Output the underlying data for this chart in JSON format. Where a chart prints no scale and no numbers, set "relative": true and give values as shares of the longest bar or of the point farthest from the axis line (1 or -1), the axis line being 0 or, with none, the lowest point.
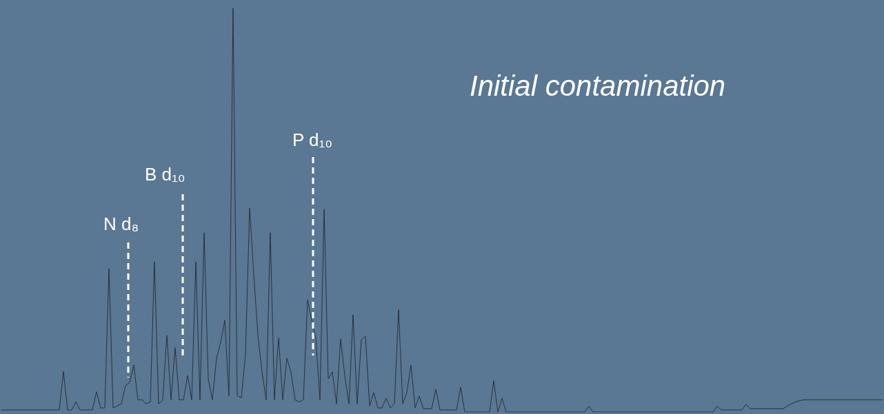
{
  "chart_data": {
    "type": "line",
    "title": "Initial contamination",
    "relative": true,
    "color": "#252a33",
    "line_style": "solid",
    "marker": "none",
    "categories": [
      null,
      null,
      null,
      null,
      null,
      null,
      null,
      null,
      null,
      null,
      null,
      null,
      null,
      null,
      null,
      null,
      null,
      null,
      null,
      null,
      null,
      null,
      null,
      null,
      null,
      null,
      null,
      null,
      null,
      null,
      null,
      null,
      null,
      null,
      null,
      null,
      null,
      null,
      null,
      null,
      null,
      null,
      null,
      null,
      null,
      null,
      null,
      null,
      null,
      null,
      null,
      null,
      null,
      null,
      null,
      null,
      null,
      null,
      null,
      null,
      null,
      null,
      null,
      null,
      null,
      null,
      null,
      null,
      null,
      null,
      null,
      null,
      null,
      null,
      null,
      null,
      null,
      null,
      null,
      null,
      null,
      null,
      null,
      null,
      null,
      null,
      null,
      null,
      null,
      null,
      null,
      null,
      null,
      null,
      null,
      null,
      null,
      null,
      null,
      null,
      null,
      null,
      null,
      null,
      null,
      null,
      null,
      null,
      null,
      null,
      null,
      null,
      null,
      null,
      null,
      null,
      null,
      null,
      null,
      null,
      null,
      null,
      null,
      null,
      null,
      null,
      null,
      null,
      null,
      null,
      null,
      null,
      null,
      null,
      null,
      null,
      null,
      null,
      null,
      null,
      null,
      null,
      null,
      null,
      null,
      null,
      null,
      null,
      null,
      null,
      null,
      null,
      null,
      null,
      null,
      null,
      null,
      null,
      null,
      null,
      null,
      null,
      null,
      null,
      null,
      null,
      null,
      null,
      null,
      null,
      null,
      null,
      null,
      null,
      null,
      null,
      null,
      null,
      null,
      null,
      null,
      null,
      null,
      null,
      null,
      null,
      null,
      null,
      null,
      null,
      null,
      null,
      null,
      null,
      null,
      null,
      null,
      null,
      null,
      null,
      null,
      null,
      null,
      null,
      null,
      null,
      null,
      null,
      null,
      null,
      null,
      null,
      null,
      null
    ],
    "values": [
      0.005,
      0.005,
      0.005,
      0.005,
      0.005,
      0.005,
      0.005,
      0.005,
      0.005,
      0.005,
      0.005,
      0.005,
      0.005,
      0.005,
      0.005,
      0.1,
      0.005,
      0.005,
      0.025,
      0.005,
      0.005,
      0.005,
      0.005,
      0.05,
      0.01,
      0.01,
      0.355,
      0.01,
      0.015,
      0.02,
      0.065,
      0.073,
      0.116,
      0.03,
      0.03,
      0.02,
      0.025,
      0.372,
      0.02,
      0.03,
      0.19,
      0.03,
      0.159,
      0.03,
      0.03,
      0.09,
      0.03,
      0.372,
      0.03,
      0.444,
      0.082,
      0.03,
      0.133,
      0.172,
      0.227,
      0.04,
      1.0,
      0.04,
      0.035,
      0.142,
      0.505,
      0.341,
      0.19,
      0.099,
      0.03,
      0.444,
      0.03,
      0.184,
      0.03,
      0.133,
      0.099,
      0.03,
      0.025,
      0.03,
      0.278,
      0.227,
      0.184,
      0.03,
      0.502,
      0.082,
      0.099,
      0.02,
      0.181,
      0.09,
      0.02,
      0.241,
      0.02,
      0.179,
      0.188,
      0.015,
      0.048,
      0.01,
      0.01,
      0.034,
      0.01,
      0.02,
      0.253,
      0.02,
      0.048,
      0.116,
      0.01,
      0.039,
      0.008,
      0.008,
      0.008,
      0.056,
      0.005,
      0.005,
      0.005,
      0.005,
      0.005,
      0.061,
      0,
      0,
      0,
      0,
      0,
      0,
      0,
      0.077,
      0,
      0.034,
      0,
      0,
      0,
      0,
      0,
      0,
      0,
      0,
      0,
      0,
      0,
      0,
      0,
      0,
      0,
      0,
      0,
      0,
      0,
      0,
      0.014,
      0,
      0,
      0,
      0,
      0,
      0,
      0,
      0,
      0,
      0,
      0,
      0,
      0,
      0,
      0,
      0,
      0,
      0,
      0,
      0,
      0,
      0,
      0,
      0,
      0,
      0,
      0,
      0,
      0,
      0,
      0.014,
      0.005,
      0.005,
      0.005,
      0.005,
      0.005,
      0.005,
      0.019,
      0.008,
      0.008,
      0.008,
      0.008,
      0.008,
      0.008,
      0.008,
      0.008,
      0.008,
      0.015,
      0.02,
      0.025,
      0.028,
      0.03,
      0.03,
      0.03,
      0.03,
      0.03,
      0.03,
      0.03,
      0.03,
      0.03,
      0.03,
      0.03,
      0.03,
      0.03,
      0.03,
      0.03,
      0.03,
      0.03,
      0.03,
      0.03,
      0.03
    ],
    "annotations": [
      "N d₈",
      "B d₁₀",
      "P d₁₀"
    ]
  }
}
